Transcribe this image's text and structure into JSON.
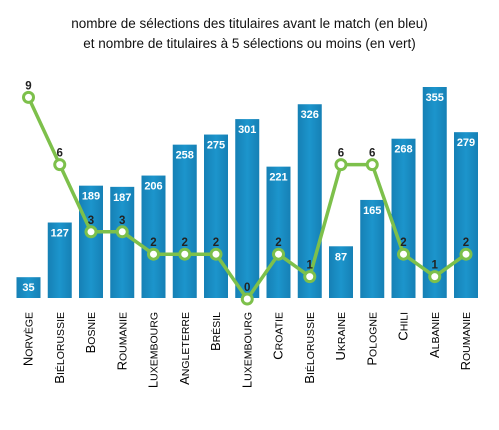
{
  "chart_data": {
    "type": "bar",
    "title_line1": "nombre de sélections des titulaires avant le match (en bleu)",
    "title_line2": "et nombre de titulaires à 5 sélections ou moins (en vert)",
    "categories": [
      "Norvège",
      "Biélorussie",
      "Bosnie",
      "Roumanie",
      "Luxembourg",
      "Angleterre",
      "Brésil",
      "Luxembourg",
      "Croatie",
      "Biélorussie",
      "Ukraine",
      "Pologne",
      "Chili",
      "Albanie",
      "Roumanie"
    ],
    "series": [
      {
        "values": [
          35,
          127,
          189,
          187,
          206,
          258,
          275,
          301,
          221,
          326,
          87,
          165,
          268,
          355,
          279
        ],
        "color": "#1a8fc3",
        "type": "bar"
      },
      {
        "values": [
          9,
          6,
          3,
          3,
          2,
          2,
          2,
          0,
          2,
          1,
          6,
          6,
          2,
          1,
          2
        ],
        "color": "#7dc04b",
        "type": "line"
      }
    ],
    "grid": false,
    "legend": "none"
  }
}
